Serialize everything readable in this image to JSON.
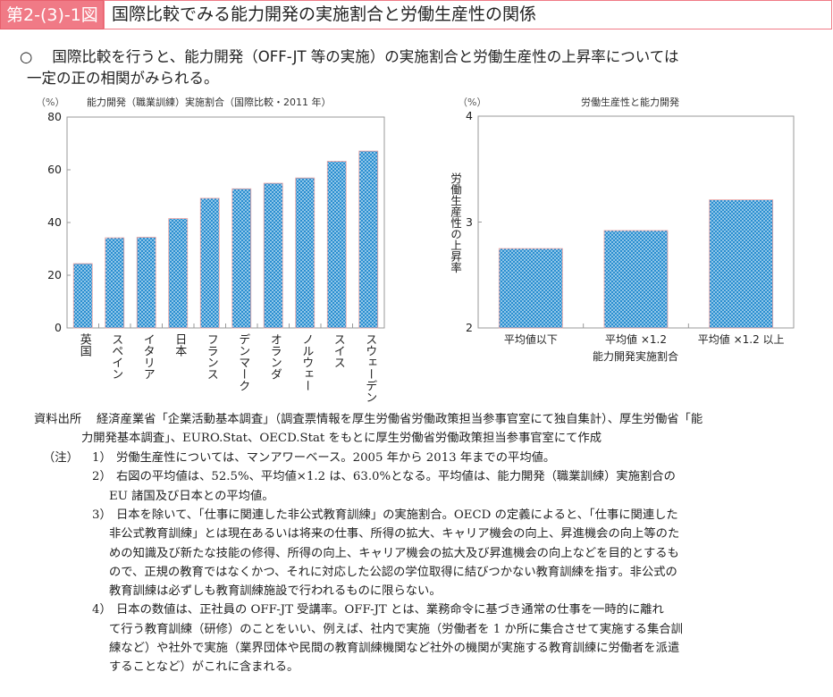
{
  "header": {
    "figure_label": "第2-(3)-1図",
    "title": "国際比較でみる能力開発の実施割合と労働生産性の関係"
  },
  "summary": {
    "bullet": "○",
    "lines": [
      "国際比較を行うと、能力開発（OFF-JT 等の実施）の実施割合と労働生産性の上昇率については",
      "一定の正の相関がみられる。"
    ]
  },
  "chart_data": [
    {
      "type": "bar",
      "title": "能力開発（職業訓練）実施割合（国際比較・2011 年）",
      "unit": "（%）",
      "xlabel": "",
      "ylabel": "",
      "ylim": [
        0,
        80
      ],
      "yticks": [
        0,
        20,
        40,
        60,
        80
      ],
      "categories": [
        "英国",
        "スペイン",
        "イタリア",
        "日本",
        "フランス",
        "デンマーク",
        "オランダ",
        "ノルウェー",
        "スイス",
        "スウェーデン"
      ],
      "values": [
        24.4,
        34.2,
        34.4,
        41.5,
        49.2,
        52.8,
        54.9,
        56.9,
        63.2,
        67.1
      ],
      "bar_color": "#2a8ed0"
    },
    {
      "type": "bar",
      "title": "労働生産性と能力開発",
      "unit": "（%）",
      "xlabel": "能力開発実施割合",
      "ylabel": "労働生産性の上昇率",
      "ylim": [
        2,
        4
      ],
      "yticks": [
        2,
        3,
        4
      ],
      "categories": [
        "平均値以下",
        "平均値 ×1.2",
        "平均値 ×1.2 以上"
      ],
      "values": [
        2.75,
        2.92,
        3.21
      ],
      "bar_color": "#2a8ed0"
    }
  ],
  "source": {
    "label": "資料出所",
    "lines": [
      "経済産業省「企業活動基本調査」（調査票情報を厚生労働省労働政策担当参事官室にて独自集計）、厚生労働省「能",
      "力開発基本調査」、EURO.Stat、OECD.Stat をもとに厚生労働省労働政策担当参事官室にて作成"
    ]
  },
  "notes": {
    "label": "（注）",
    "items": [
      {
        "num": "1）",
        "lines": [
          "労働生産性については、マンアワーベース。2005 年から 2013 年までの平均値。"
        ]
      },
      {
        "num": "2）",
        "lines": [
          "右図の平均値は、52.5%、平均値×1.2 は、63.0%となる。平均値は、能力開発（職業訓練）実施割合の",
          "EU 諸国及び日本との平均値。"
        ]
      },
      {
        "num": "3）",
        "lines": [
          "日本を除いて、「仕事に関連した非公式教育訓練」の実施割合。OECD の定義によると、「仕事に関連した",
          "非公式教育訓練」とは現在あるいは将来の仕事、所得の拡大、キャリア機会の向上、昇進機会の向上等のた",
          "めの知識及び新たな技能の修得、所得の向上、キャリア機会の拡大及び昇進機会の向上などを目的とするも",
          "ので、正規の教育ではなくかつ、それに対応した公認の学位取得に結びつかない教育訓練を指す。非公式の",
          "教育訓練は必ずしも教育訓練施設で行われるものに限らない。"
        ]
      },
      {
        "num": "4）",
        "lines": [
          "日本の数値は、正社員の OFF-JT 受講率。OFF-JT とは、業務命令に基づき通常の仕事を一時的に離れ",
          "て行う教育訓練（研修）のことをいい、例えば、社内で実施（労働者を 1 か所に集合させて実施する集合訓",
          "練など）や社外で実施（業界団体や民間の教育訓練機関など社外の機関が実施する教育訓練に労働者を派遣",
          "することなど）がこれに含まれる。"
        ]
      }
    ]
  }
}
